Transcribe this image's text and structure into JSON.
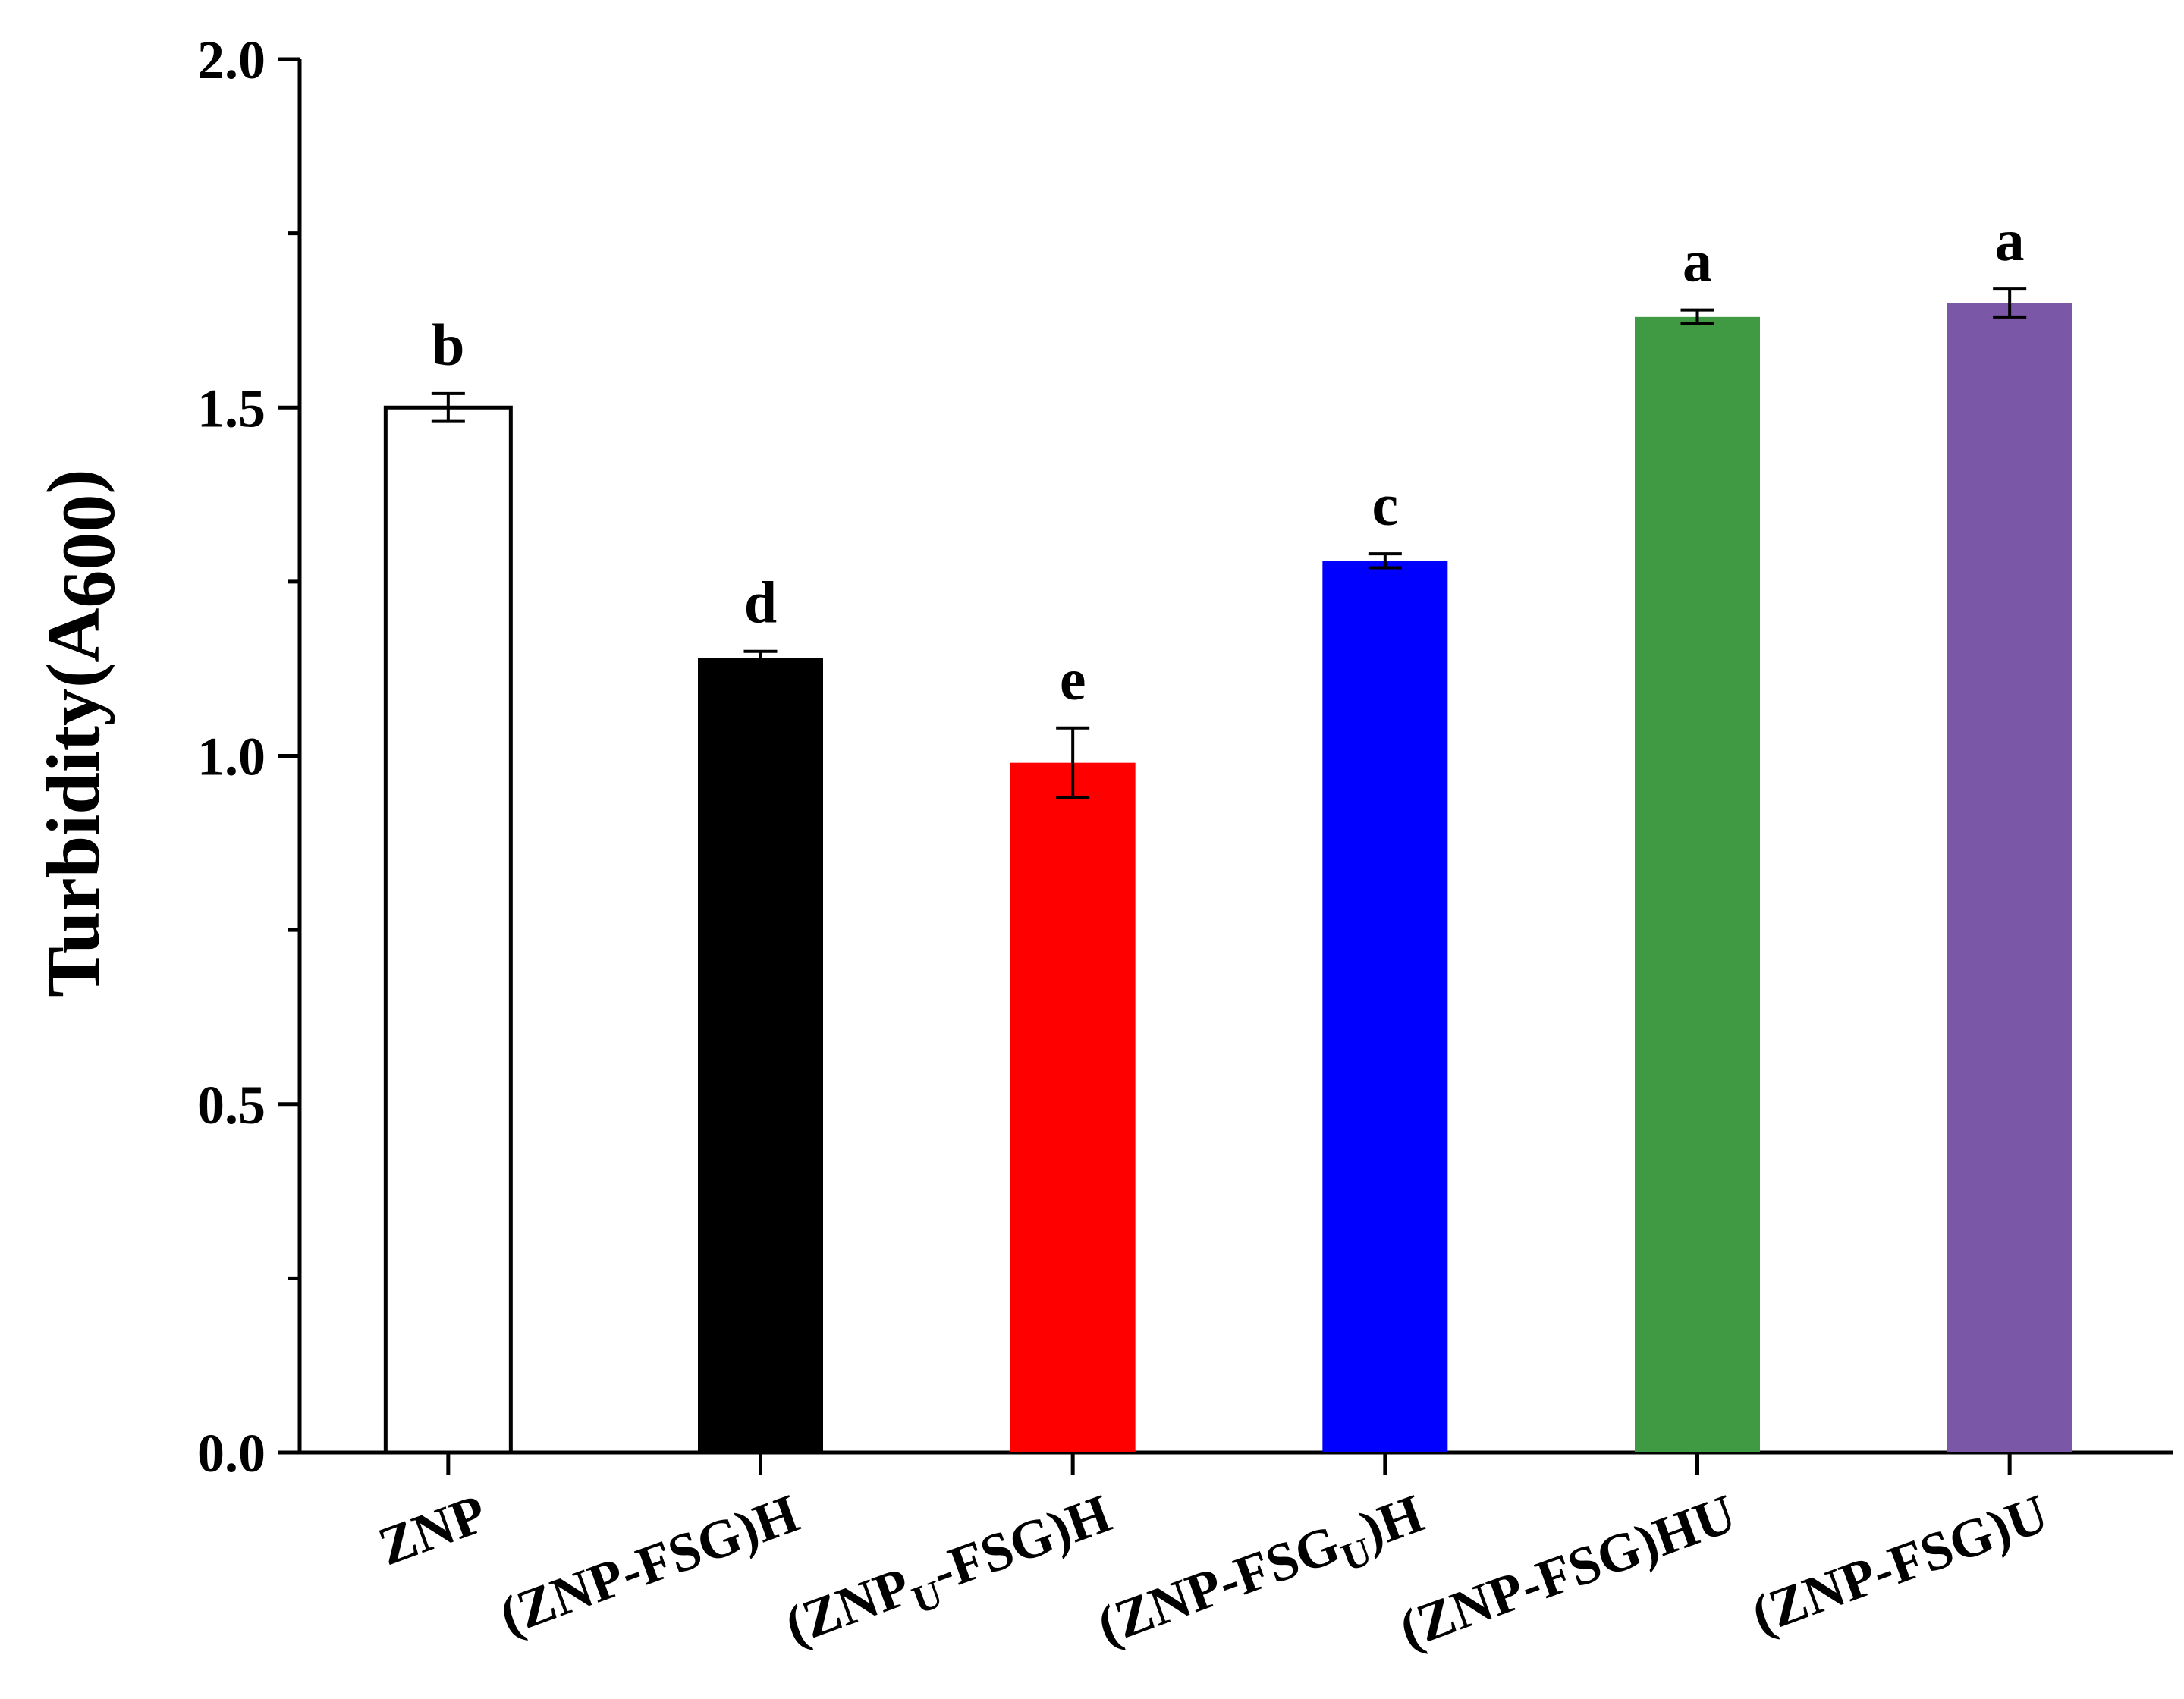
{
  "chart_data": {
    "type": "bar",
    "title": "",
    "xlabel": "",
    "ylabel": {
      "main": "Turbidity(A",
      "sub": "600",
      "close": ")"
    },
    "ylim": [
      0,
      2.0
    ],
    "major_ticks": [
      "0.0",
      "0.5",
      "1.0",
      "1.5",
      "2.0"
    ],
    "major_tick_values": [
      0.0,
      0.5,
      1.0,
      1.5,
      2.0
    ],
    "minor_tick_values": [
      0.25,
      0.75,
      1.25,
      1.75
    ],
    "grid": false,
    "legend": "none",
    "categories": [
      {
        "pre": "ZNP",
        "sub": "",
        "post": ""
      },
      {
        "pre": "(ZNP-FSG)H",
        "sub": "",
        "post": ""
      },
      {
        "pre": "(ZNP",
        "sub": "U",
        "post": "-FSG)H"
      },
      {
        "pre": "(ZNP-FSG",
        "sub": "U",
        "post": ")H"
      },
      {
        "pre": "(ZNP-FSG)HU",
        "sub": "",
        "post": ""
      },
      {
        "pre": "(ZNP-FSG)U",
        "sub": "",
        "post": ""
      }
    ],
    "values": [
      1.5,
      1.14,
      0.99,
      1.28,
      1.63,
      1.65
    ],
    "errors": [
      0.02,
      0.01,
      0.05,
      0.01,
      0.01,
      0.02
    ],
    "significance": [
      "b",
      "d",
      "e",
      "c",
      "a",
      "a"
    ],
    "colors": [
      "#ffffff",
      "#000000",
      "#ff0000",
      "#0000ff",
      "#3f9a43",
      "#7b57a7"
    ],
    "outlined": [
      true,
      false,
      false,
      false,
      false,
      false
    ]
  }
}
